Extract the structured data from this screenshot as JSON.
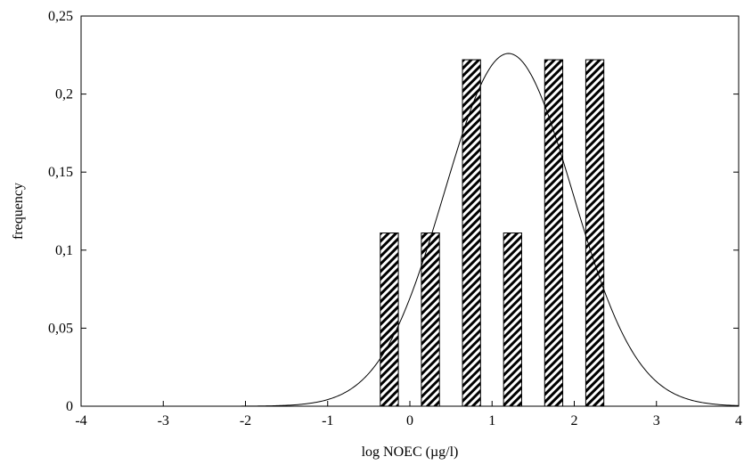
{
  "chart_data": {
    "type": "bar",
    "title": "",
    "xlabel": "log NOEC (µg/l)",
    "ylabel": "frequency",
    "xlim": [
      -4,
      4
    ],
    "ylim": [
      0,
      0.25
    ],
    "x_ticks": [
      {
        "value": -4,
        "label": "-4"
      },
      {
        "value": -3,
        "label": "-3"
      },
      {
        "value": -2,
        "label": "-2"
      },
      {
        "value": -1,
        "label": "-1"
      },
      {
        "value": 0,
        "label": "0"
      },
      {
        "value": 1,
        "label": "1"
      },
      {
        "value": 2,
        "label": "2"
      },
      {
        "value": 3,
        "label": "3"
      },
      {
        "value": 4,
        "label": "4"
      }
    ],
    "y_ticks": [
      {
        "value": 0,
        "label": "0"
      },
      {
        "value": 0.05,
        "label": "0,05"
      },
      {
        "value": 0.1,
        "label": "0,1"
      },
      {
        "value": 0.15,
        "label": "0,15"
      },
      {
        "value": 0.2,
        "label": "0,2"
      },
      {
        "value": 0.25,
        "label": "0,25"
      }
    ],
    "bars": [
      {
        "x": -0.25,
        "width": 0.22,
        "value": 0.111
      },
      {
        "x": 0.25,
        "width": 0.22,
        "value": 0.111
      },
      {
        "x": 0.75,
        "width": 0.22,
        "value": 0.222
      },
      {
        "x": 1.25,
        "width": 0.22,
        "value": 0.111
      },
      {
        "x": 1.75,
        "width": 0.22,
        "value": 0.222
      },
      {
        "x": 2.25,
        "width": 0.22,
        "value": 0.222
      }
    ],
    "curve": {
      "type": "normal-density",
      "mean": 1.2,
      "sd": 0.78,
      "peak": 0.226
    },
    "bar_pattern": "diagonal-hatch",
    "grid": false,
    "legend": "none"
  }
}
